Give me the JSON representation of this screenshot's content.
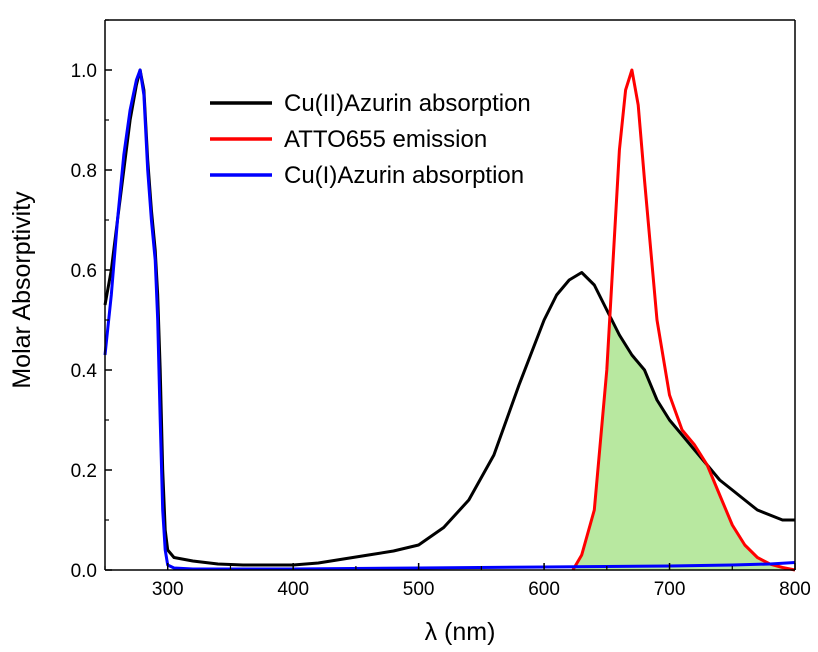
{
  "chart_data": {
    "type": "line",
    "title": "",
    "xlabel": "λ (nm)",
    "ylabel": "Molar Absorptivity",
    "xlim": [
      250,
      800
    ],
    "ylim": [
      0,
      1.1
    ],
    "x_ticks": [
      300,
      400,
      500,
      600,
      700,
      800
    ],
    "x_tick_labels": [
      "300",
      "400",
      "500",
      "600",
      "700",
      "800"
    ],
    "y_ticks": [
      0.0,
      0.2,
      0.4,
      0.6,
      0.8,
      1.0
    ],
    "y_tick_labels": [
      "0.0",
      "0.2",
      "0.4",
      "0.6",
      "0.8",
      "1.0"
    ],
    "grid": false,
    "legend_position": "top-center",
    "overlap_fill": {
      "description_color": "#b8e8a0",
      "between": [
        "ATTO655 emission",
        "Cu(II)Azurin absorption"
      ]
    },
    "series": [
      {
        "name": "Cu(II)Azurin absorption",
        "color": "#000000",
        "x": [
          250,
          255,
          260,
          265,
          270,
          275,
          278,
          281,
          284,
          287,
          290,
          292,
          294,
          296,
          298,
          300,
          305,
          320,
          340,
          360,
          380,
          400,
          420,
          440,
          460,
          480,
          500,
          520,
          540,
          560,
          580,
          600,
          610,
          620,
          630,
          640,
          650,
          660,
          670,
          680,
          690,
          700,
          710,
          720,
          730,
          740,
          750,
          760,
          770,
          780,
          790,
          800
        ],
        "y": [
          0.53,
          0.6,
          0.7,
          0.8,
          0.9,
          0.97,
          1.0,
          0.96,
          0.82,
          0.72,
          0.64,
          0.55,
          0.4,
          0.2,
          0.08,
          0.04,
          0.025,
          0.018,
          0.012,
          0.01,
          0.01,
          0.01,
          0.014,
          0.022,
          0.03,
          0.038,
          0.05,
          0.085,
          0.14,
          0.23,
          0.37,
          0.5,
          0.55,
          0.58,
          0.595,
          0.57,
          0.52,
          0.47,
          0.43,
          0.4,
          0.34,
          0.3,
          0.27,
          0.24,
          0.21,
          0.18,
          0.16,
          0.14,
          0.12,
          0.11,
          0.1,
          0.1
        ]
      },
      {
        "name": "ATTO655 emission",
        "color": "#ff0000",
        "x": [
          623,
          630,
          640,
          650,
          655,
          660,
          665,
          670,
          675,
          680,
          690,
          700,
          710,
          720,
          730,
          740,
          750,
          760,
          770,
          780,
          790,
          800
        ],
        "y": [
          0.0,
          0.03,
          0.12,
          0.4,
          0.62,
          0.84,
          0.96,
          1.0,
          0.93,
          0.78,
          0.5,
          0.35,
          0.28,
          0.25,
          0.21,
          0.15,
          0.09,
          0.05,
          0.025,
          0.012,
          0.005,
          0.0
        ]
      },
      {
        "name": "Cu(I)Azurin absorption",
        "color": "#0000ff",
        "x": [
          250,
          255,
          260,
          265,
          270,
          275,
          278,
          281,
          284,
          287,
          290,
          292,
          294,
          296,
          298,
          300,
          305,
          320,
          400,
          500,
          600,
          700,
          750,
          780,
          800
        ],
        "y": [
          0.43,
          0.55,
          0.7,
          0.83,
          0.92,
          0.98,
          1.0,
          0.95,
          0.8,
          0.7,
          0.62,
          0.5,
          0.3,
          0.12,
          0.04,
          0.01,
          0.004,
          0.002,
          0.002,
          0.004,
          0.006,
          0.008,
          0.01,
          0.012,
          0.015
        ]
      }
    ]
  }
}
